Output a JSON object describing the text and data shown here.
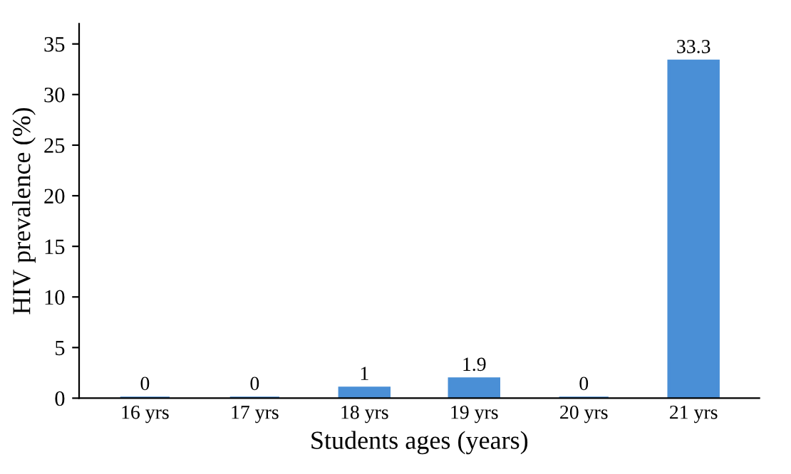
{
  "chart_data": {
    "type": "bar",
    "xlabel": "Students ages (years)",
    "ylabel": "HIV prevalence (%)",
    "categories": [
      "16 yrs",
      "17 yrs",
      "18 yrs",
      "19 yrs",
      "20 yrs",
      "21 yrs"
    ],
    "values": [
      0,
      0,
      1,
      1.9,
      0,
      33.3
    ],
    "color": "#4a8fd6",
    "data_labels": true,
    "ylim": [
      0,
      37
    ],
    "yticks": [
      0,
      5,
      10,
      15,
      20,
      25,
      30,
      35
    ],
    "grid": false,
    "legend": false
  }
}
